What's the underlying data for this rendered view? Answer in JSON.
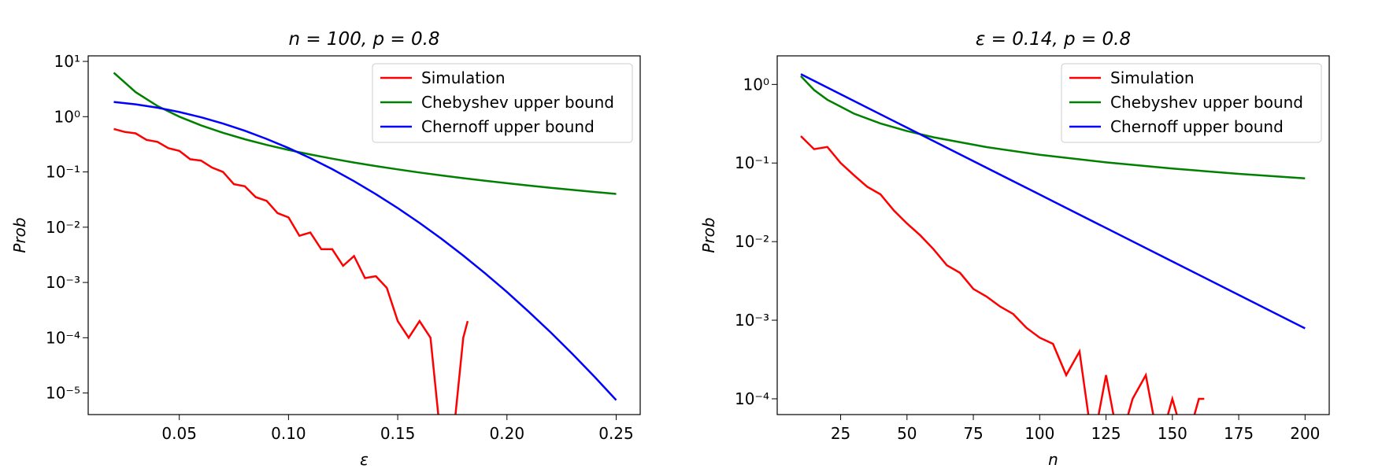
{
  "chart_data": [
    {
      "type": "line",
      "title": "n = 100, p = 0.8",
      "x_label": "ε",
      "y_label": "Prob",
      "y_scale": "log",
      "legend": "upper right",
      "xlim": [
        0.0083,
        0.261
      ],
      "ylim": [
        12.6,
        4.07e-06
      ],
      "xticks": [
        0.05,
        0.1,
        0.15,
        0.2,
        0.25
      ],
      "xtick_labels": [
        "0.05",
        "0.10",
        "0.15",
        "0.20",
        "0.25"
      ],
      "yticks": [
        {
          "value": 10,
          "label": "10¹"
        },
        {
          "value": 1,
          "label": "10⁰"
        },
        {
          "value": 0.1,
          "label": "10⁻¹"
        },
        {
          "value": 0.01,
          "label": "10⁻²"
        },
        {
          "value": 0.001,
          "label": "10⁻³"
        },
        {
          "value": 0.0001,
          "label": "10⁻⁴"
        },
        {
          "value": 1e-05,
          "label": "10⁻⁵"
        }
      ],
      "series": [
        {
          "name": "Simulation",
          "color": "#ff0000",
          "x": [
            0.02,
            0.025,
            0.03,
            0.035,
            0.04,
            0.045,
            0.05,
            0.055,
            0.06,
            0.065,
            0.07,
            0.075,
            0.08,
            0.085,
            0.09,
            0.095,
            0.1,
            0.105,
            0.11,
            0.115,
            0.12,
            0.125,
            0.13,
            0.135,
            0.14,
            0.145,
            0.15,
            0.155,
            0.16,
            0.165,
            0.17,
            0.175,
            0.18,
            0.182
          ],
          "values": [
            0.6,
            0.53,
            0.5,
            0.38,
            0.35,
            0.27,
            0.24,
            0.17,
            0.16,
            0.12,
            0.1,
            0.06,
            0.055,
            0.035,
            0.03,
            0.018,
            0.015,
            0.007,
            0.008,
            0.004,
            0.004,
            0.002,
            0.003,
            0.0012,
            0.0013,
            0.0008,
            0.0002,
            0.0001,
            0.0002,
            0.0001,
            0,
            0,
            0.0001,
            0.0002
          ]
        },
        {
          "name": "Chebyshev upper bound",
          "color": "#008000",
          "x": [
            0.02,
            0.03,
            0.04,
            0.05,
            0.06,
            0.07,
            0.08,
            0.09,
            0.1,
            0.11,
            0.12,
            0.13,
            0.14,
            0.15,
            0.16,
            0.17,
            0.18,
            0.19,
            0.2,
            0.21,
            0.22,
            0.23,
            0.24,
            0.25
          ],
          "values": [
            6.25,
            2.778,
            1.5625,
            1.0,
            0.6944,
            0.5102,
            0.3906,
            0.3086,
            0.25,
            0.2066,
            0.1736,
            0.1479,
            0.1276,
            0.1111,
            0.09766,
            0.08651,
            0.07716,
            0.06925,
            0.0625,
            0.05669,
            0.05165,
            0.04726,
            0.0434,
            0.04
          ]
        },
        {
          "name": "Chernoff upper bound",
          "color": "#0000ff",
          "x": [
            0.02,
            0.03,
            0.04,
            0.05,
            0.06,
            0.07,
            0.08,
            0.09,
            0.1,
            0.11,
            0.12,
            0.13,
            0.14,
            0.15,
            0.16,
            0.17,
            0.18,
            0.19,
            0.2,
            0.21,
            0.22,
            0.23,
            0.24,
            0.25
          ],
          "values": [
            1.846,
            1.671,
            1.452,
            1.213,
            0.9735,
            0.7506,
            0.556,
            0.3958,
            0.2707,
            0.1778,
            0.1123,
            0.0681,
            0.03968,
            0.02222,
            0.01195,
            0.006178,
            0.003068,
            0.001464,
            0.000671,
            0.0002956,
            0.000125,
            5.08e-05,
            1.99e-05,
            7.45e-06
          ]
        }
      ]
    },
    {
      "type": "line",
      "title": "ε = 0.14, p = 0.8",
      "x_label": "n",
      "y_label": "Prob",
      "y_scale": "log",
      "legend": "upper right",
      "xlim": [
        1.1,
        209.1
      ],
      "ylim": [
        2.31,
        6.3e-05
      ],
      "xticks": [
        25,
        50,
        75,
        100,
        125,
        150,
        175,
        200
      ],
      "yticks": [
        {
          "value": 1,
          "label": "10⁰"
        },
        {
          "value": 0.1,
          "label": "10⁻¹"
        },
        {
          "value": 0.01,
          "label": "10⁻²"
        },
        {
          "value": 0.001,
          "label": "10⁻³"
        },
        {
          "value": 0.0001,
          "label": "10⁻⁴"
        }
      ],
      "series": [
        {
          "name": "Simulation",
          "color": "#ff0000",
          "x": [
            10,
            15,
            20,
            25,
            30,
            35,
            40,
            45,
            50,
            55,
            60,
            65,
            70,
            75,
            80,
            85,
            90,
            95,
            100,
            105,
            110,
            115,
            120,
            125,
            130,
            135,
            140,
            145,
            150,
            155,
            160,
            162
          ],
          "values": [
            0.22,
            0.15,
            0.16,
            0.1,
            0.07,
            0.05,
            0.04,
            0.025,
            0.017,
            0.012,
            0.008,
            0.005,
            0.004,
            0.0025,
            0.002,
            0.0015,
            0.0012,
            0.0008,
            0.0006,
            0.0005,
            0.0002,
            0.0004,
            0,
            0.0002,
            0,
            0.0001,
            0.0002,
            0,
            0.0001,
            0,
            0.0001,
            0.0001
          ]
        },
        {
          "name": "Chebyshev upper bound",
          "color": "#008000",
          "x": [
            10,
            15,
            20,
            30,
            40,
            50,
            60,
            80,
            100,
            125,
            150,
            175,
            200
          ],
          "values": [
            1.276,
            0.8503,
            0.6378,
            0.4252,
            0.3189,
            0.2551,
            0.2126,
            0.1594,
            0.1276,
            0.102,
            0.08503,
            0.07289,
            0.06378
          ]
        },
        {
          "name": "Chernoff upper bound",
          "color": "#0000ff",
          "x": [
            10,
            50,
            100,
            150,
            200
          ],
          "values": [
            1.351,
            0.2817,
            0.03968,
            0.00559,
            0.000787
          ]
        }
      ]
    }
  ]
}
